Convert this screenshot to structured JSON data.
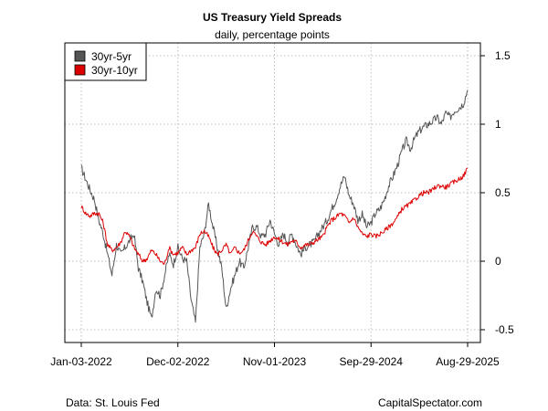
{
  "chart_data": {
    "type": "line",
    "title": "US Treasury Yield Spreads",
    "subtitle": "daily, percentage points",
    "xlabel": "",
    "ylabel": "",
    "x_range": [
      0,
      44
    ],
    "ylim": [
      -0.6,
      1.6
    ],
    "x_ticks": [
      {
        "t": 0,
        "label": "Jan-03-2022"
      },
      {
        "t": 11,
        "label": "Dec-02-2022"
      },
      {
        "t": 22,
        "label": "Nov-01-2023"
      },
      {
        "t": 33,
        "label": "Sep-29-2024"
      },
      {
        "t": 44,
        "label": "Aug-29-2025"
      }
    ],
    "y_ticks": [
      -0.5,
      0,
      0.5,
      1,
      1.5
    ],
    "y_tick_labels": [
      "-0.5",
      "0",
      "0.5",
      "1",
      "1.5"
    ],
    "grid": true,
    "legend_position": "top-left",
    "x_unit": "months since Jan-03-2022",
    "series": [
      {
        "name": "30yr-5yr",
        "color": "#555555",
        "x": [
          0,
          0.5,
          1,
          1.5,
          2,
          2.5,
          3,
          3.5,
          4,
          4.5,
          5,
          5.5,
          6,
          6.5,
          7,
          7.5,
          8,
          8.5,
          9,
          9.5,
          10,
          10.5,
          11,
          11.5,
          12,
          12.5,
          13,
          13.5,
          14,
          14.5,
          15,
          15.5,
          16,
          16.5,
          17,
          17.5,
          18,
          18.5,
          19,
          19.5,
          20,
          20.5,
          21,
          21.5,
          22,
          22.5,
          23,
          23.5,
          24,
          24.5,
          25,
          25.5,
          26,
          26.5,
          27,
          27.5,
          28,
          28.5,
          29,
          29.5,
          30,
          30.5,
          31,
          31.5,
          32,
          32.5,
          33,
          33.5,
          34,
          34.5,
          35,
          35.5,
          36,
          36.5,
          37,
          37.5,
          38,
          38.5,
          39,
          39.5,
          40,
          40.5,
          41,
          41.5,
          42,
          42.5,
          43,
          43.5,
          44
        ],
        "values": [
          0.68,
          0.6,
          0.52,
          0.45,
          0.3,
          0.2,
          0.05,
          -0.1,
          0.12,
          0.05,
          0.1,
          0.15,
          0.2,
          -0.05,
          -0.15,
          -0.3,
          -0.42,
          -0.2,
          -0.25,
          -0.1,
          0.05,
          -0.02,
          0.1,
          0.02,
          0.0,
          -0.28,
          -0.45,
          0.1,
          0.2,
          0.42,
          0.25,
          0.1,
          -0.05,
          -0.35,
          -0.2,
          -0.1,
          0.0,
          -0.05,
          0.1,
          0.25,
          0.25,
          0.18,
          0.2,
          0.3,
          0.2,
          0.12,
          0.2,
          0.14,
          0.2,
          0.12,
          0.05,
          0.1,
          0.12,
          0.14,
          0.2,
          0.25,
          0.3,
          0.38,
          0.45,
          0.55,
          0.62,
          0.48,
          0.42,
          0.3,
          0.34,
          0.25,
          0.28,
          0.35,
          0.38,
          0.45,
          0.55,
          0.62,
          0.7,
          0.8,
          0.88,
          0.82,
          0.9,
          0.95,
          0.98,
          1.0,
          1.02,
          1.05,
          1.0,
          1.08,
          1.05,
          1.1,
          1.12,
          1.15,
          1.25
        ]
      },
      {
        "name": "30yr-10yr",
        "color": "#dd0000",
        "x": [
          0,
          0.5,
          1,
          1.5,
          2,
          2.5,
          3,
          3.5,
          4,
          4.5,
          5,
          5.5,
          6,
          6.5,
          7,
          7.5,
          8,
          8.5,
          9,
          9.5,
          10,
          10.5,
          11,
          11.5,
          12,
          12.5,
          13,
          13.5,
          14,
          14.5,
          15,
          15.5,
          16,
          16.5,
          17,
          17.5,
          18,
          18.5,
          19,
          19.5,
          20,
          20.5,
          21,
          21.5,
          22,
          22.5,
          23,
          23.5,
          24,
          24.5,
          25,
          25.5,
          26,
          26.5,
          27,
          27.5,
          28,
          28.5,
          29,
          29.5,
          30,
          30.5,
          31,
          31.5,
          32,
          32.5,
          33,
          33.5,
          34,
          34.5,
          35,
          35.5,
          36,
          36.5,
          37,
          37.5,
          38,
          38.5,
          39,
          39.5,
          40,
          40.5,
          41,
          41.5,
          42,
          42.5,
          43,
          43.5,
          44
        ],
        "values": [
          0.4,
          0.35,
          0.33,
          0.35,
          0.35,
          0.28,
          0.12,
          0.08,
          0.1,
          0.14,
          0.22,
          0.18,
          0.1,
          0.05,
          0.0,
          0.02,
          0.08,
          0.05,
          0.0,
          -0.02,
          0.1,
          0.05,
          0.06,
          0.1,
          0.05,
          0.08,
          0.1,
          0.2,
          0.22,
          0.18,
          0.1,
          0.05,
          0.08,
          0.12,
          0.05,
          0.1,
          0.06,
          0.08,
          0.15,
          0.22,
          0.18,
          0.14,
          0.12,
          0.15,
          0.18,
          0.16,
          0.14,
          0.12,
          0.15,
          0.14,
          0.1,
          0.12,
          0.12,
          0.14,
          0.16,
          0.18,
          0.25,
          0.3,
          0.32,
          0.35,
          0.33,
          0.28,
          0.32,
          0.25,
          0.2,
          0.18,
          0.2,
          0.18,
          0.2,
          0.22,
          0.25,
          0.28,
          0.32,
          0.38,
          0.4,
          0.42,
          0.45,
          0.48,
          0.5,
          0.5,
          0.52,
          0.55,
          0.55,
          0.54,
          0.56,
          0.58,
          0.6,
          0.62,
          0.68
        ]
      }
    ]
  },
  "footer": {
    "source": "Data: St. Louis Fed",
    "credit": "CapitalSpectator.com"
  }
}
